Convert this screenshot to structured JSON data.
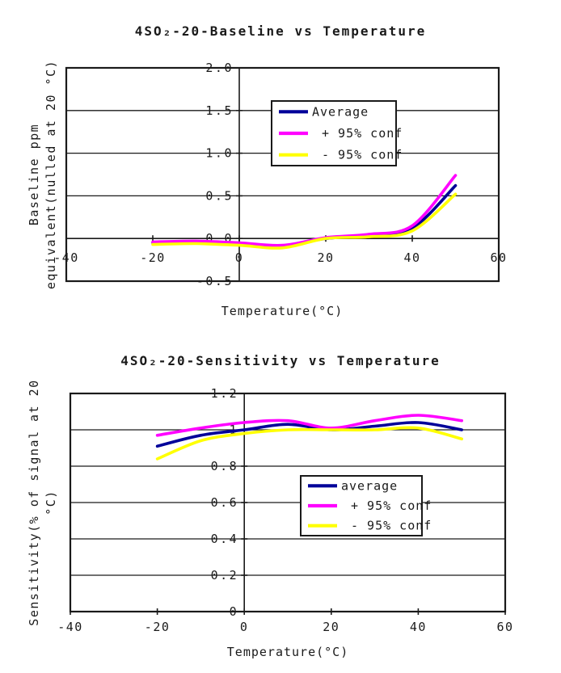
{
  "page": {
    "background": "#ffffff",
    "text_color": "#1a1a1a"
  },
  "colors": {
    "average_line": "#000099",
    "plus_conf_line": "#ff00ff",
    "minus_conf_line": "#ffff00",
    "axis": "#1a1a1a",
    "legend_background": "#ffffff"
  },
  "chart_data": [
    {
      "type": "line",
      "title": "4SO₂-20-Baseline vs Temperature",
      "xlabel": "Temperature(°C)",
      "ylabel_lines": [
        "Baseline ppm",
        "equivalent(nulled at 20 °C)"
      ],
      "xlim": [
        -40,
        60
      ],
      "ylim": [
        -0.5,
        2.0
      ],
      "xticks": {
        "values": [
          -40,
          -20,
          0,
          20,
          40,
          60
        ],
        "labels": [
          "-40",
          "-20",
          "0",
          "20",
          "40",
          "60"
        ]
      },
      "yticks": {
        "values": [
          -0.5,
          0.0,
          0.5,
          1.0,
          1.5,
          2.0
        ],
        "labels": [
          "-0.5",
          "0.0",
          "0.5",
          "1.0",
          "1.5",
          "2.0"
        ]
      },
      "grid": "horizontal",
      "legend_position": "upper-middle",
      "x_axis_crosses_at_y": 0.0,
      "x": [
        -20,
        -10,
        0,
        10,
        20,
        30,
        40,
        50
      ],
      "series": [
        {
          "name": "Average",
          "color_key": "average_line",
          "values": [
            -0.05,
            -0.04,
            -0.06,
            -0.09,
            0.0,
            0.03,
            0.12,
            0.62
          ]
        },
        {
          "name": "+ 95% conf",
          "color_key": "plus_conf_line",
          "values": [
            -0.04,
            -0.03,
            -0.05,
            -0.08,
            0.01,
            0.05,
            0.15,
            0.74
          ]
        },
        {
          "name": "- 95% conf",
          "color_key": "minus_conf_line",
          "values": [
            -0.07,
            -0.06,
            -0.08,
            -0.11,
            0.0,
            0.02,
            0.09,
            0.52
          ]
        }
      ]
    },
    {
      "type": "line",
      "title": "4SO₂-20-Sensitivity vs Temperature",
      "xlabel": "Temperature(°C)",
      "ylabel_lines": [
        "Sensitivity(% of signal at 20",
        "°C)"
      ],
      "xlim": [
        -40,
        60
      ],
      "ylim": [
        0,
        1.2
      ],
      "xticks": {
        "values": [
          -40,
          -20,
          0,
          20,
          40,
          60
        ],
        "labels": [
          "-40",
          "-20",
          "0",
          "20",
          "40",
          "60"
        ]
      },
      "yticks": {
        "values": [
          0,
          0.2,
          0.4,
          0.6,
          0.8,
          1.0,
          1.2
        ],
        "labels": [
          "0",
          "0.2",
          "0.4",
          "0.6",
          "0.8",
          "1",
          "1.2"
        ]
      },
      "grid": "horizontal",
      "legend_position": "middle-right",
      "x_axis_crosses_at_y": 0,
      "x": [
        -20,
        -10,
        0,
        10,
        20,
        30,
        40,
        50
      ],
      "series": [
        {
          "name": "average",
          "color_key": "average_line",
          "values": [
            0.91,
            0.97,
            1.0,
            1.03,
            1.0,
            1.02,
            1.04,
            1.0
          ]
        },
        {
          "name": "+ 95% conf",
          "color_key": "plus_conf_line",
          "values": [
            0.97,
            1.01,
            1.04,
            1.05,
            1.01,
            1.05,
            1.08,
            1.05
          ]
        },
        {
          "name": "- 95% conf",
          "color_key": "minus_conf_line",
          "values": [
            0.84,
            0.94,
            0.98,
            1.0,
            1.0,
            1.0,
            1.01,
            0.95
          ]
        }
      ]
    }
  ]
}
